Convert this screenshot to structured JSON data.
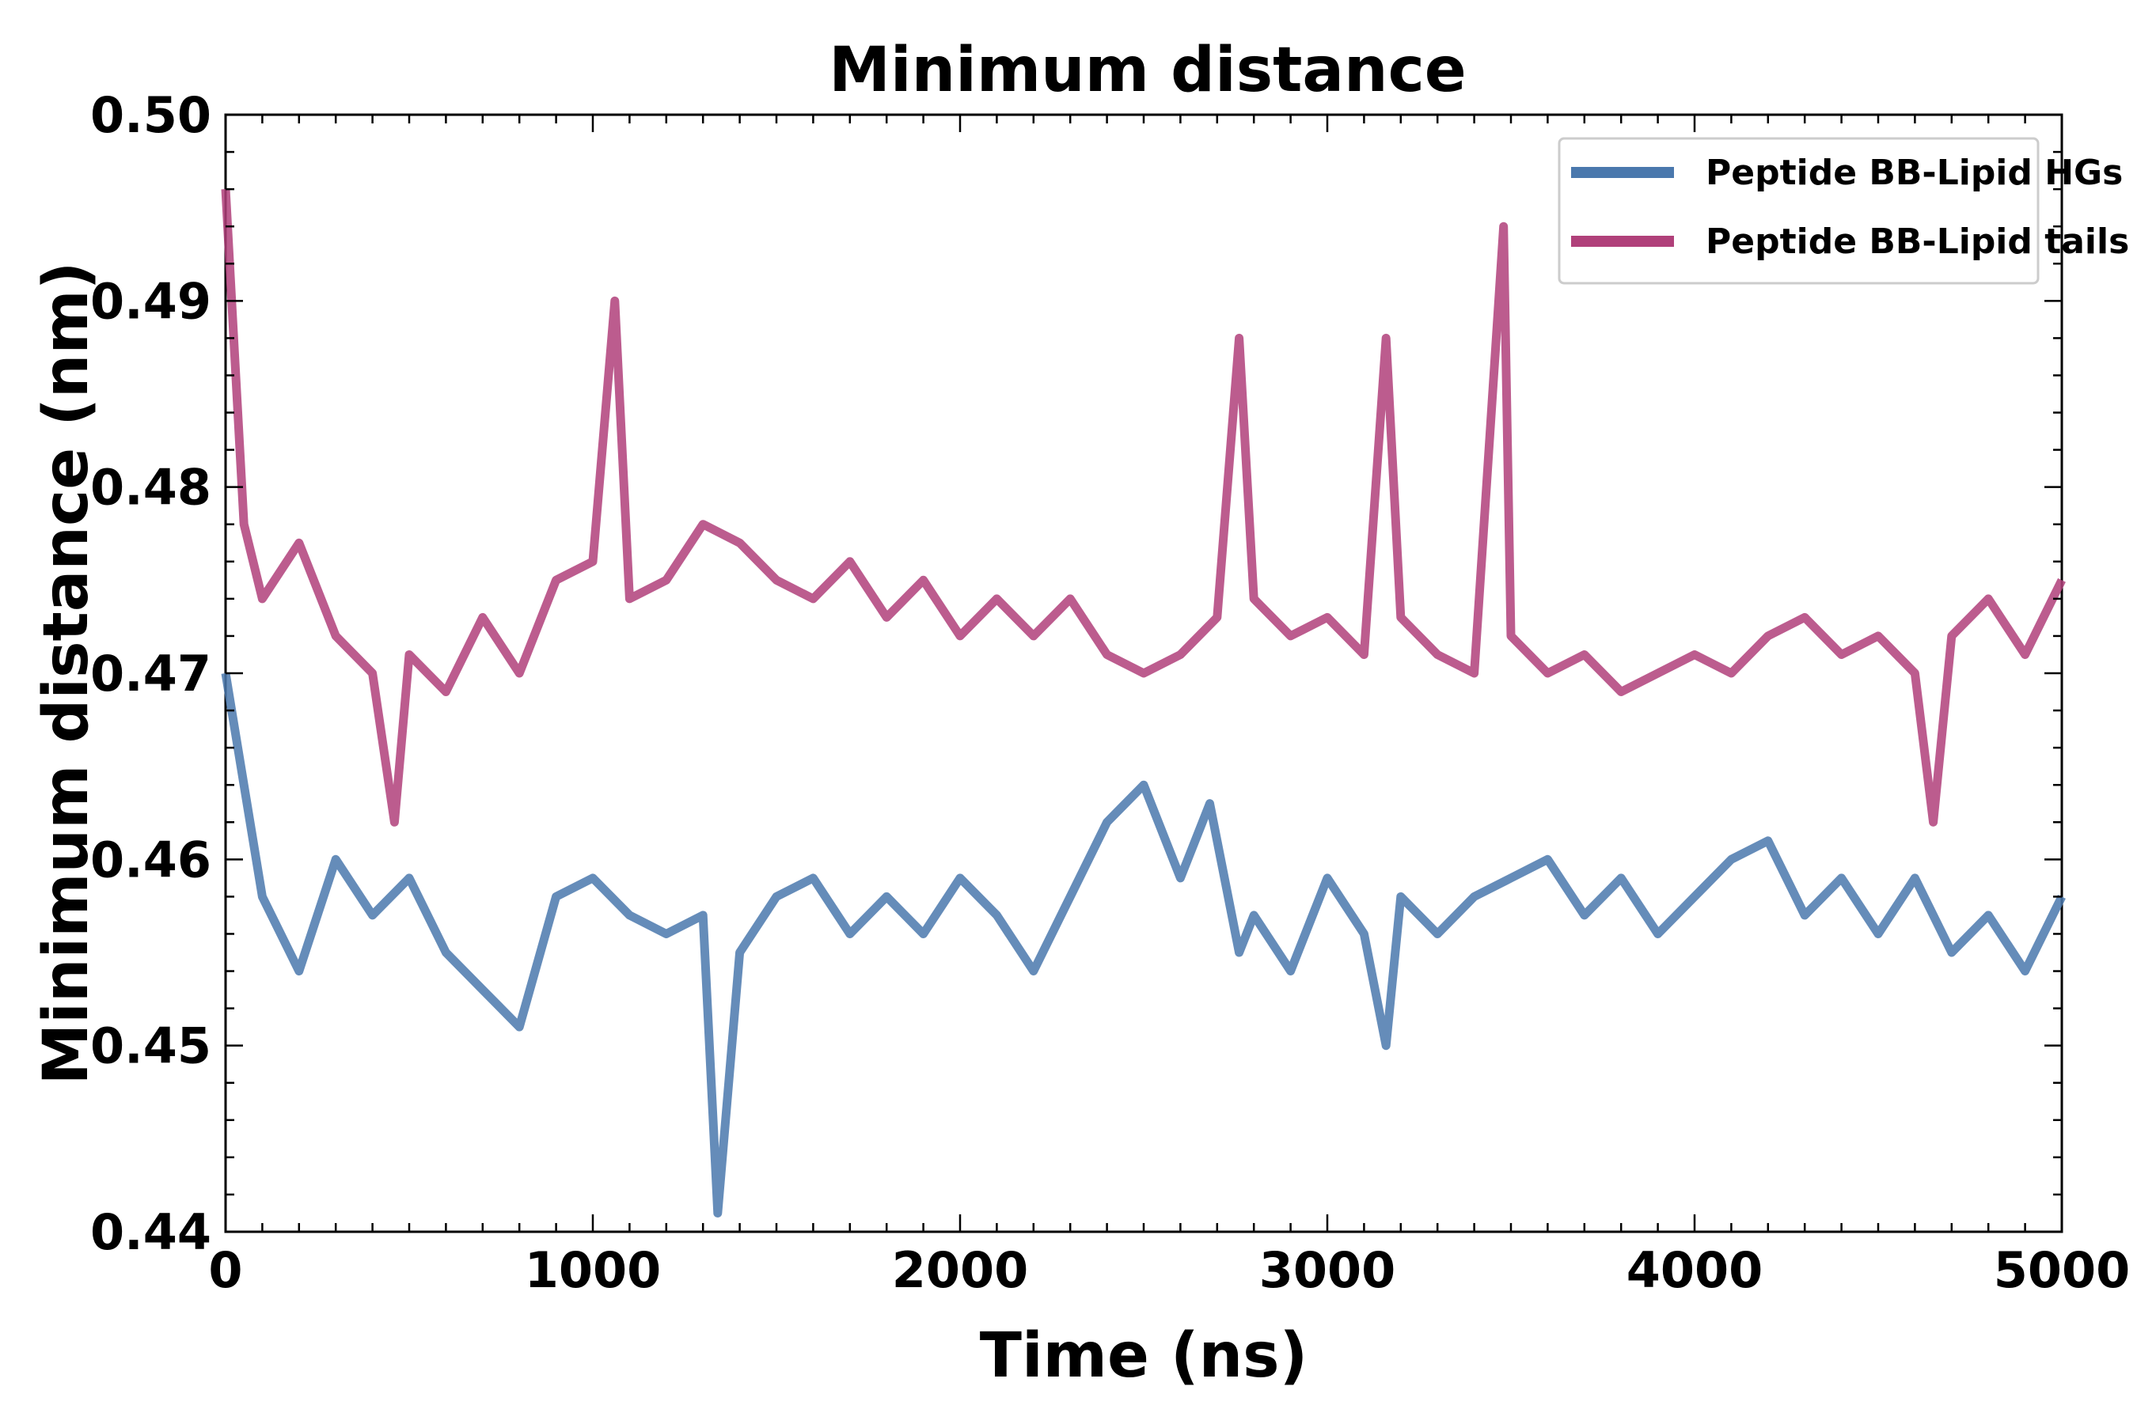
{
  "chart_data": {
    "type": "line",
    "title": "Minimum distance",
    "xlabel": "Time (ns)",
    "ylabel": "Minimum distance (nm)",
    "xlim": [
      0,
      5000
    ],
    "ylim": [
      0.44,
      0.5
    ],
    "x_ticks": [
      "0",
      "1000",
      "2000",
      "3000",
      "4000",
      "5000"
    ],
    "y_ticks": [
      "0.44",
      "0.45",
      "0.46",
      "0.47",
      "0.48",
      "0.49",
      "0.50"
    ],
    "grid": false,
    "legend_position": "top-right",
    "series": [
      {
        "name": "Peptide BB-Lipid HGs",
        "color": "#4a78ad",
        "x": [
          0,
          100,
          200,
          300,
          400,
          500,
          600,
          700,
          800,
          900,
          1000,
          1100,
          1200,
          1300,
          1340,
          1400,
          1500,
          1600,
          1700,
          1800,
          1900,
          2000,
          2100,
          2200,
          2300,
          2400,
          2500,
          2600,
          2680,
          2760,
          2800,
          2900,
          3000,
          3100,
          3160,
          3200,
          3300,
          3400,
          3500,
          3600,
          3700,
          3800,
          3900,
          4000,
          4100,
          4200,
          4300,
          4400,
          4500,
          4600,
          4700,
          4800,
          4900,
          5000
        ],
        "values": [
          0.47,
          0.458,
          0.454,
          0.46,
          0.457,
          0.459,
          0.455,
          0.453,
          0.451,
          0.458,
          0.459,
          0.457,
          0.456,
          0.457,
          0.441,
          0.455,
          0.458,
          0.459,
          0.456,
          0.458,
          0.456,
          0.459,
          0.457,
          0.454,
          0.458,
          0.462,
          0.464,
          0.459,
          0.463,
          0.455,
          0.457,
          0.454,
          0.459,
          0.456,
          0.45,
          0.458,
          0.456,
          0.458,
          0.459,
          0.46,
          0.457,
          0.459,
          0.456,
          0.458,
          0.46,
          0.461,
          0.457,
          0.459,
          0.456,
          0.459,
          0.455,
          0.457,
          0.454,
          0.458
        ]
      },
      {
        "name": "Peptide BB-Lipid tails",
        "color": "#b0407a",
        "x": [
          0,
          50,
          100,
          200,
          300,
          400,
          460,
          500,
          600,
          700,
          800,
          900,
          1000,
          1060,
          1100,
          1200,
          1300,
          1400,
          1500,
          1600,
          1700,
          1800,
          1900,
          2000,
          2100,
          2200,
          2300,
          2400,
          2500,
          2600,
          2700,
          2760,
          2800,
          2900,
          3000,
          3100,
          3160,
          3200,
          3300,
          3400,
          3480,
          3500,
          3600,
          3700,
          3800,
          3900,
          4000,
          4100,
          4200,
          4300,
          4400,
          4500,
          4600,
          4650,
          4700,
          4800,
          4900,
          5000
        ],
        "values": [
          0.496,
          0.478,
          0.474,
          0.477,
          0.472,
          0.47,
          0.462,
          0.471,
          0.469,
          0.473,
          0.47,
          0.475,
          0.476,
          0.49,
          0.474,
          0.475,
          0.478,
          0.477,
          0.475,
          0.474,
          0.476,
          0.473,
          0.475,
          0.472,
          0.474,
          0.472,
          0.474,
          0.471,
          0.47,
          0.471,
          0.473,
          0.488,
          0.474,
          0.472,
          0.473,
          0.471,
          0.488,
          0.473,
          0.471,
          0.47,
          0.494,
          0.472,
          0.47,
          0.471,
          0.469,
          0.47,
          0.471,
          0.47,
          0.472,
          0.473,
          0.471,
          0.472,
          0.47,
          0.462,
          0.472,
          0.474,
          0.471,
          0.475
        ]
      }
    ]
  }
}
